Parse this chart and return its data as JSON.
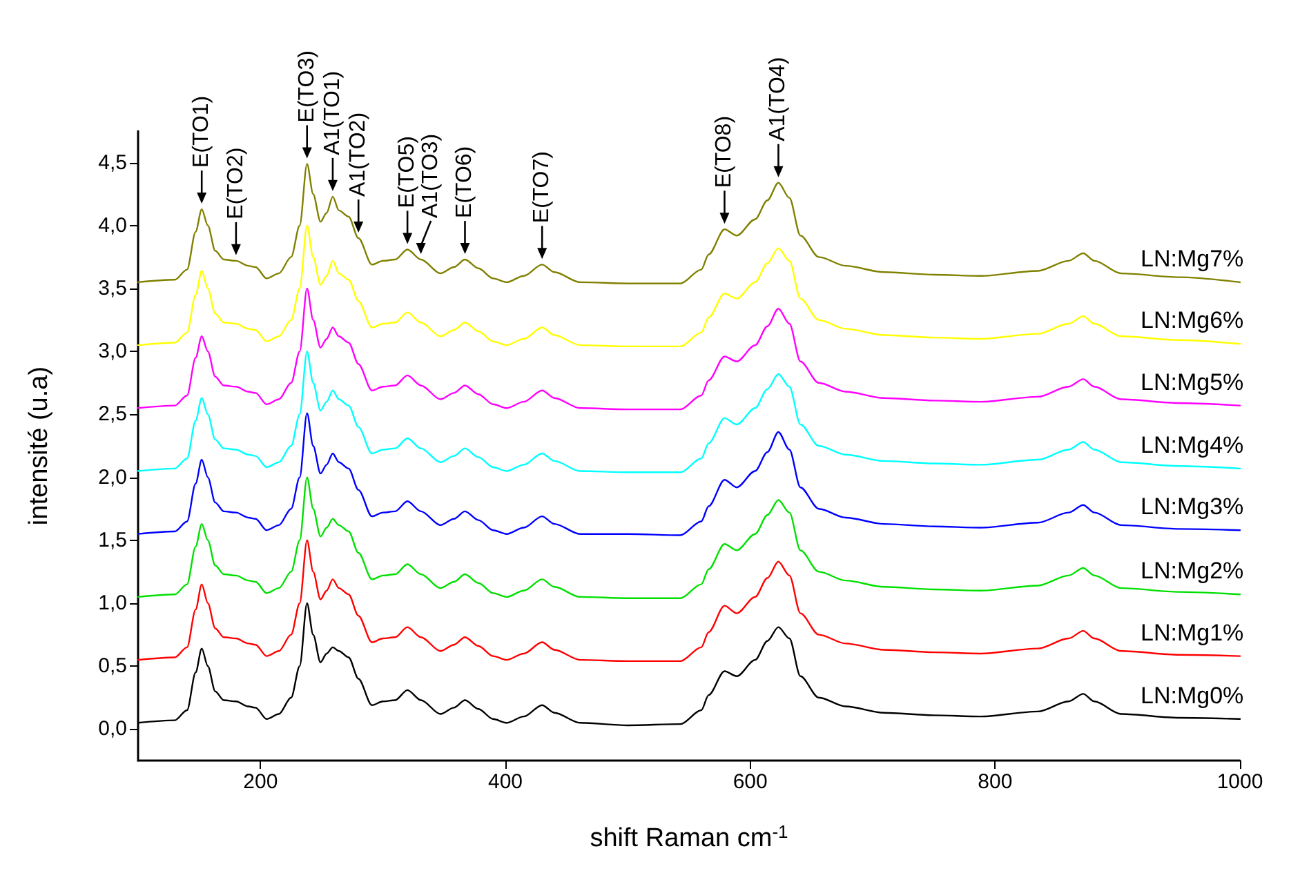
{
  "chart_data": {
    "type": "line",
    "xlabel": "shift Raman cm$^{-1}$",
    "ylabel": "intensité (u.a)",
    "x": [
      100,
      130,
      140,
      147,
      152,
      157,
      163,
      170,
      180,
      190,
      196,
      205,
      215,
      225,
      232,
      238,
      243,
      249,
      254,
      259,
      264,
      272,
      280,
      291,
      300,
      310,
      320,
      331,
      347,
      358,
      367,
      378,
      390,
      401,
      415,
      430,
      440,
      461,
      500,
      543,
      560,
      566,
      579,
      589,
      604,
      614,
      623,
      632,
      641,
      656,
      678,
      709,
      750,
      788,
      835,
      860,
      872,
      881,
      903,
      950,
      1000
    ],
    "xlim": [
      100,
      1000
    ],
    "xticks": [
      200,
      400,
      600,
      800,
      1000
    ],
    "ylim": [
      -0.25,
      4.75
    ],
    "yticks": [
      {
        "value": 0,
        "label": "0,0"
      },
      {
        "value": 0.5,
        "label": "0,5"
      },
      {
        "value": 1,
        "label": "1,0"
      },
      {
        "value": 1.5,
        "label": "1,5"
      },
      {
        "value": 2,
        "label": "2,0"
      },
      {
        "value": 2.5,
        "label": "2,5"
      },
      {
        "value": 3,
        "label": "3,0"
      },
      {
        "value": 3.5,
        "label": "3,5"
      },
      {
        "value": 4,
        "label": "4,0"
      },
      {
        "value": 4.5,
        "label": "4,5"
      }
    ],
    "grid": false,
    "legend": false,
    "marker": "none",
    "line_style": "solid",
    "series": [
      {
        "name": "LN:Mg0%",
        "color": "#000000",
        "values": [
          0.05,
          0.07,
          0.15,
          0.45,
          0.64,
          0.5,
          0.3,
          0.23,
          0.22,
          0.18,
          0.17,
          0.08,
          0.12,
          0.25,
          0.5,
          1.0,
          0.75,
          0.53,
          0.6,
          0.65,
          0.62,
          0.57,
          0.4,
          0.19,
          0.22,
          0.23,
          0.31,
          0.23,
          0.12,
          0.17,
          0.23,
          0.16,
          0.08,
          0.05,
          0.1,
          0.19,
          0.13,
          0.05,
          0.03,
          0.04,
          0.15,
          0.27,
          0.46,
          0.42,
          0.55,
          0.7,
          0.81,
          0.72,
          0.42,
          0.25,
          0.18,
          0.13,
          0.11,
          0.1,
          0.14,
          0.22,
          0.28,
          0.22,
          0.12,
          0.09,
          0.08
        ]
      },
      {
        "name": "LN:Mg1%",
        "color": "#ff0000",
        "values": [
          0.55,
          0.57,
          0.65,
          0.95,
          1.15,
          1.0,
          0.8,
          0.73,
          0.72,
          0.68,
          0.67,
          0.58,
          0.62,
          0.75,
          1.0,
          1.5,
          1.25,
          1.03,
          1.1,
          1.19,
          1.12,
          1.07,
          0.9,
          0.69,
          0.72,
          0.73,
          0.81,
          0.73,
          0.62,
          0.67,
          0.73,
          0.66,
          0.58,
          0.55,
          0.6,
          0.69,
          0.63,
          0.55,
          0.54,
          0.54,
          0.65,
          0.77,
          0.98,
          0.92,
          1.05,
          1.2,
          1.33,
          1.22,
          0.92,
          0.75,
          0.68,
          0.63,
          0.61,
          0.6,
          0.64,
          0.72,
          0.78,
          0.72,
          0.62,
          0.59,
          0.58
        ]
      },
      {
        "name": "LN:Mg2%",
        "color": "#00e000",
        "values": [
          1.05,
          1.07,
          1.15,
          1.45,
          1.63,
          1.5,
          1.3,
          1.23,
          1.22,
          1.18,
          1.17,
          1.08,
          1.12,
          1.25,
          1.5,
          2.0,
          1.75,
          1.53,
          1.6,
          1.67,
          1.62,
          1.57,
          1.4,
          1.19,
          1.22,
          1.23,
          1.31,
          1.23,
          1.12,
          1.17,
          1.23,
          1.16,
          1.08,
          1.05,
          1.1,
          1.19,
          1.13,
          1.05,
          1.04,
          1.04,
          1.15,
          1.27,
          1.47,
          1.42,
          1.55,
          1.7,
          1.82,
          1.72,
          1.42,
          1.25,
          1.18,
          1.13,
          1.11,
          1.1,
          1.14,
          1.22,
          1.28,
          1.22,
          1.12,
          1.09,
          1.07
        ]
      },
      {
        "name": "LN:Mg3%",
        "color": "#0000ff",
        "values": [
          1.55,
          1.57,
          1.65,
          1.95,
          2.14,
          2.0,
          1.8,
          1.73,
          1.72,
          1.68,
          1.67,
          1.58,
          1.62,
          1.75,
          2.0,
          2.51,
          2.25,
          2.03,
          2.1,
          2.19,
          2.12,
          2.07,
          1.9,
          1.69,
          1.72,
          1.73,
          1.81,
          1.73,
          1.62,
          1.67,
          1.73,
          1.66,
          1.58,
          1.55,
          1.6,
          1.69,
          1.63,
          1.55,
          1.55,
          1.54,
          1.65,
          1.77,
          1.98,
          1.92,
          2.05,
          2.2,
          2.36,
          2.22,
          1.92,
          1.75,
          1.68,
          1.63,
          1.61,
          1.6,
          1.64,
          1.72,
          1.78,
          1.72,
          1.62,
          1.59,
          1.58
        ]
      },
      {
        "name": "LN:Mg4%",
        "color": "#00ffff",
        "values": [
          2.05,
          2.07,
          2.15,
          2.45,
          2.63,
          2.5,
          2.3,
          2.23,
          2.22,
          2.18,
          2.17,
          2.08,
          2.12,
          2.25,
          2.5,
          3.0,
          2.75,
          2.53,
          2.6,
          2.69,
          2.62,
          2.57,
          2.4,
          2.19,
          2.22,
          2.23,
          2.31,
          2.23,
          2.12,
          2.17,
          2.23,
          2.16,
          2.08,
          2.05,
          2.1,
          2.19,
          2.13,
          2.05,
          2.04,
          2.04,
          2.15,
          2.27,
          2.47,
          2.42,
          2.55,
          2.7,
          2.82,
          2.72,
          2.42,
          2.25,
          2.18,
          2.13,
          2.11,
          2.1,
          2.14,
          2.22,
          2.28,
          2.22,
          2.12,
          2.09,
          2.07
        ]
      },
      {
        "name": "LN:Mg5%",
        "color": "#ff00ff",
        "values": [
          2.55,
          2.57,
          2.65,
          2.95,
          3.12,
          3.0,
          2.8,
          2.73,
          2.72,
          2.68,
          2.67,
          2.58,
          2.62,
          2.75,
          3.0,
          3.5,
          3.25,
          3.03,
          3.1,
          3.19,
          3.12,
          3.07,
          2.9,
          2.69,
          2.72,
          2.73,
          2.81,
          2.73,
          2.62,
          2.67,
          2.73,
          2.66,
          2.58,
          2.55,
          2.6,
          2.69,
          2.63,
          2.55,
          2.54,
          2.54,
          2.65,
          2.77,
          2.96,
          2.92,
          3.05,
          3.2,
          3.34,
          3.22,
          2.92,
          2.75,
          2.68,
          2.63,
          2.61,
          2.6,
          2.64,
          2.72,
          2.78,
          2.72,
          2.62,
          2.59,
          2.57
        ]
      },
      {
        "name": "LN:Mg6%",
        "color": "#ffff00",
        "values": [
          3.05,
          3.07,
          3.15,
          3.45,
          3.64,
          3.5,
          3.3,
          3.23,
          3.22,
          3.18,
          3.17,
          3.08,
          3.12,
          3.25,
          3.5,
          4.0,
          3.75,
          3.53,
          3.6,
          3.72,
          3.62,
          3.57,
          3.4,
          3.19,
          3.22,
          3.23,
          3.31,
          3.23,
          3.12,
          3.17,
          3.23,
          3.16,
          3.08,
          3.05,
          3.1,
          3.19,
          3.13,
          3.05,
          3.04,
          3.04,
          3.15,
          3.27,
          3.46,
          3.42,
          3.55,
          3.7,
          3.82,
          3.72,
          3.42,
          3.25,
          3.18,
          3.13,
          3.11,
          3.1,
          3.14,
          3.22,
          3.28,
          3.22,
          3.12,
          3.09,
          3.06
        ]
      },
      {
        "name": "LN:Mg7%",
        "color": "#808000",
        "values": [
          3.55,
          3.57,
          3.65,
          3.95,
          4.13,
          4.0,
          3.8,
          3.73,
          3.72,
          3.68,
          3.67,
          3.58,
          3.62,
          3.75,
          4.0,
          4.49,
          4.25,
          4.03,
          4.1,
          4.23,
          4.12,
          4.07,
          3.9,
          3.69,
          3.72,
          3.73,
          3.81,
          3.73,
          3.62,
          3.67,
          3.73,
          3.66,
          3.58,
          3.55,
          3.6,
          3.69,
          3.63,
          3.55,
          3.54,
          3.54,
          3.65,
          3.77,
          3.97,
          3.92,
          4.05,
          4.2,
          4.34,
          4.22,
          3.92,
          3.75,
          3.68,
          3.63,
          3.61,
          3.6,
          3.64,
          3.72,
          3.78,
          3.72,
          3.62,
          3.59,
          3.55
        ]
      }
    ],
    "annotations": [
      {
        "text": "E(TO1)",
        "x": 152,
        "y": 4.13
      },
      {
        "text": "E(TO2)",
        "x": 180,
        "y": 3.72
      },
      {
        "text": "E(TO3)",
        "x": 238,
        "y": 4.49
      },
      {
        "text": "A1(TO1)",
        "x": 259,
        "y": 4.23
      },
      {
        "text": "A1(TO2)",
        "x": 280,
        "y": 3.9
      },
      {
        "text": "E(TO5)",
        "x": 320,
        "y": 3.81
      },
      {
        "text": "A1(TO3)",
        "x": 331,
        "y": 3.73
      },
      {
        "text": "E(TO6)",
        "x": 367,
        "y": 3.73
      },
      {
        "text": "E(TO7)",
        "x": 430,
        "y": 3.69
      },
      {
        "text": "E(TO8)",
        "x": 579,
        "y": 3.97
      },
      {
        "text": "A1(TO4)",
        "x": 623,
        "y": 4.34
      }
    ]
  }
}
